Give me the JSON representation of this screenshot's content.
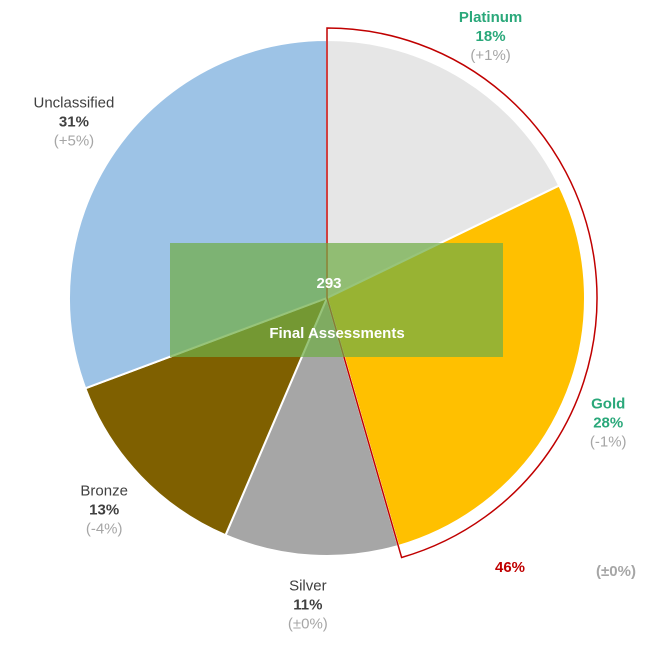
{
  "chart_data": {
    "type": "pie",
    "categories": [
      "Platinum",
      "Gold",
      "Silver",
      "Bronze",
      "Unclassified"
    ],
    "values": [
      18,
      28,
      11,
      13,
      31
    ],
    "value_labels": [
      "18%",
      "28%",
      "11%",
      "13%",
      "31%"
    ],
    "changes": [
      "(+1%)",
      "(-1%)",
      "(±0%)",
      "(-4%)",
      "(+5%)"
    ],
    "colors": [
      "#e6e6e6",
      "#ffc000",
      "#a6a6a6",
      "#7f6000",
      "#9dc3e6"
    ],
    "label_colors": [
      "#2aa87a",
      "#2aa87a",
      "#404040",
      "#404040",
      "#404040"
    ],
    "center_value": 293,
    "center_label": "Final Assessments",
    "highlight": {
      "value": 46,
      "label": "46%",
      "change": "(±0%)",
      "color": "#c00000"
    }
  }
}
